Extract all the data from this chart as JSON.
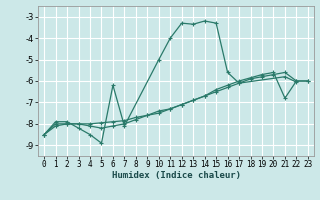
{
  "title": "",
  "xlabel": "Humidex (Indice chaleur)",
  "xlim": [
    -0.5,
    23.5
  ],
  "ylim": [
    -9.5,
    -2.5
  ],
  "yticks": [
    -9,
    -8,
    -7,
    -6,
    -5,
    -4,
    -3
  ],
  "xticks": [
    0,
    1,
    2,
    3,
    4,
    5,
    6,
    7,
    8,
    9,
    10,
    11,
    12,
    13,
    14,
    15,
    16,
    17,
    18,
    19,
    20,
    21,
    22,
    23
  ],
  "bg_color": "#cce8e8",
  "grid_color": "#ffffff",
  "line_color": "#2a7a6a",
  "line1_x": [
    0,
    1,
    2,
    3,
    4,
    5,
    6,
    7,
    8,
    9,
    10,
    11,
    12,
    13,
    14,
    15,
    16,
    17,
    18,
    19,
    20,
    21,
    22,
    23
  ],
  "line1_y": [
    -8.5,
    -8.1,
    -8.0,
    -8.0,
    -8.0,
    -7.95,
    -7.9,
    -7.85,
    -7.7,
    -7.6,
    -7.4,
    -7.3,
    -7.1,
    -6.9,
    -6.7,
    -6.5,
    -6.3,
    -6.1,
    -5.9,
    -5.8,
    -5.7,
    -5.6,
    -6.0,
    -6.0
  ],
  "line2_x": [
    0,
    1,
    2,
    3,
    4,
    5,
    6,
    7,
    8,
    9,
    10,
    11,
    12,
    13,
    14,
    15,
    16,
    17,
    18,
    19,
    20,
    21,
    22,
    23
  ],
  "line2_y": [
    -8.5,
    -8.0,
    -8.0,
    -8.0,
    -8.1,
    -8.2,
    -8.1,
    -8.0,
    -7.8,
    -7.6,
    -7.5,
    -7.3,
    -7.1,
    -6.9,
    -6.7,
    -6.4,
    -6.2,
    -6.0,
    -5.85,
    -5.7,
    -5.6,
    -6.8,
    -6.0,
    -6.0
  ],
  "line3_x": [
    0,
    1,
    2,
    3,
    4,
    5,
    6,
    7,
    10,
    11,
    12,
    13,
    14,
    15,
    16,
    17,
    21,
    22
  ],
  "line3_y": [
    -8.5,
    -7.9,
    -7.9,
    -8.2,
    -8.5,
    -8.9,
    -6.2,
    -8.1,
    -5.0,
    -4.0,
    -3.3,
    -3.35,
    -3.2,
    -3.3,
    -5.6,
    -6.1,
    -5.8,
    -6.05
  ],
  "xlabel_fontsize": 6.5,
  "tick_fontsize": 5.5,
  "line_width": 0.9,
  "marker_size": 3
}
